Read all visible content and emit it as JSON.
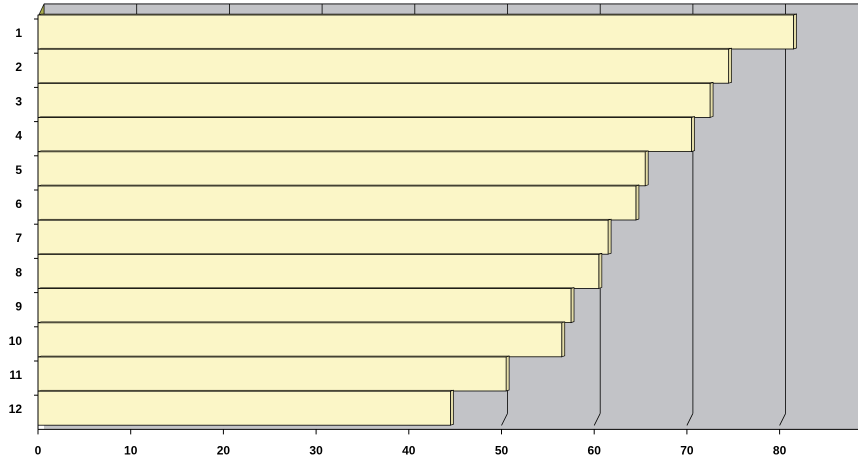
{
  "chart_data": {
    "type": "bar",
    "orientation": "horizontal",
    "style": "3d",
    "title": "",
    "xlabel": "",
    "ylabel": "",
    "categories": [
      "1",
      "2",
      "3",
      "4",
      "5",
      "6",
      "7",
      "8",
      "9",
      "10",
      "11",
      "12"
    ],
    "values": [
      81.5,
      74.5,
      72.5,
      70.5,
      65.5,
      64.5,
      61.5,
      60.5,
      57.5,
      56.5,
      50.5,
      44.5
    ],
    "xlim": [
      0,
      90
    ],
    "x_ticks": [
      "0",
      "10",
      "20",
      "30",
      "40",
      "50",
      "60",
      "70",
      "80"
    ],
    "grid": true,
    "legend": "none",
    "colors": {
      "bar_fill": "#fbf6c7",
      "bar_side": "#e3dca8",
      "plot_wall": "#c2c3c7",
      "floor": "#a9ab4e",
      "line": "#000000"
    }
  }
}
